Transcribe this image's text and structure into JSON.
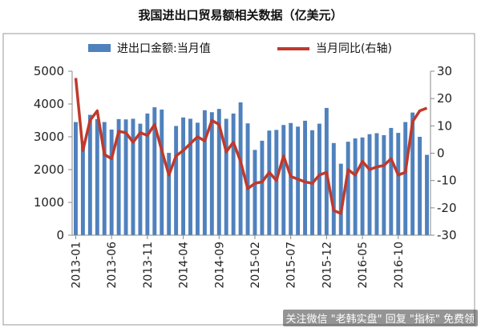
{
  "chart_data": {
    "type": "bar+line",
    "title": "我国进出口贸易额相关数据（亿美元）",
    "legend": {
      "placement": "top",
      "bar_label": "进出口金额:当月值",
      "line_label": "当月同比(右轴)"
    },
    "colors": {
      "bar": "#4F81BD",
      "line": "#C0392B",
      "axis": "#888888"
    },
    "y_left": {
      "min": 0,
      "max": 5000,
      "ticks": [
        "0",
        "1000",
        "2000",
        "3000",
        "4000",
        "5000"
      ]
    },
    "y_right": {
      "min": -30,
      "max": 30,
      "ticks": [
        "-30",
        "-20",
        "-10",
        "0",
        "10",
        "20",
        "30"
      ]
    },
    "x_tick_labels": [
      "2013-01",
      "2013-06",
      "2013-11",
      "2014-04",
      "2014-09",
      "2015-02",
      "2015-07",
      "2015-12",
      "2016-05",
      "2016-10"
    ],
    "x_tick_every": 5,
    "months": [
      "2013-01",
      "2013-02",
      "2013-03",
      "2013-04",
      "2013-05",
      "2013-06",
      "2013-07",
      "2013-08",
      "2013-09",
      "2013-10",
      "2013-11",
      "2013-12",
      "2014-01",
      "2014-02",
      "2014-03",
      "2014-04",
      "2014-05",
      "2014-06",
      "2014-07",
      "2014-08",
      "2014-09",
      "2014-10",
      "2014-11",
      "2014-12",
      "2015-01",
      "2015-02",
      "2015-03",
      "2015-04",
      "2015-05",
      "2015-06",
      "2015-07",
      "2015-08",
      "2015-09",
      "2015-10",
      "2015-11",
      "2015-12",
      "2016-01",
      "2016-02",
      "2016-03",
      "2016-04",
      "2016-05",
      "2016-06",
      "2016-07",
      "2016-08",
      "2016-09",
      "2016-10",
      "2016-11",
      "2016-12",
      "2017-01",
      "2017-02"
    ],
    "series": [
      {
        "name": "进出口金额:当月值",
        "type": "bar",
        "axis": "left",
        "values": [
          3450,
          2810,
          3670,
          3540,
          3450,
          3220,
          3540,
          3530,
          3550,
          3400,
          3710,
          3900,
          3830,
          2510,
          3330,
          3590,
          3550,
          3430,
          3810,
          3750,
          3850,
          3550,
          3710,
          4050,
          3410,
          2600,
          2880,
          3190,
          3210,
          3360,
          3420,
          3310,
          3490,
          3200,
          3400,
          3880,
          2810,
          2180,
          2850,
          2950,
          2980,
          3080,
          3110,
          3050,
          3270,
          3120,
          3450,
          3740,
          3000,
          2450
        ]
      },
      {
        "name": "当月同比(右轴)",
        "type": "line",
        "axis": "right",
        "values": [
          27.5,
          1,
          12,
          15.5,
          -0.5,
          -2,
          8,
          7.5,
          4,
          7.5,
          6.5,
          10.5,
          1,
          -8,
          -1,
          1,
          3.5,
          6,
          4.5,
          12,
          10.5,
          0.5,
          4,
          -3,
          -13,
          -11,
          -10.5,
          -7,
          -10,
          -1,
          -8.5,
          -9.5,
          -10.5,
          -11,
          -8,
          -7,
          -21,
          -22,
          -6,
          -8,
          -3,
          -6,
          -5,
          -4.5,
          -2,
          -8,
          -7,
          11.5,
          15.5,
          16.5
        ]
      }
    ]
  },
  "watermark": "关注微信 \"老韩实盘\" 回复 \"指标\" 免费领"
}
